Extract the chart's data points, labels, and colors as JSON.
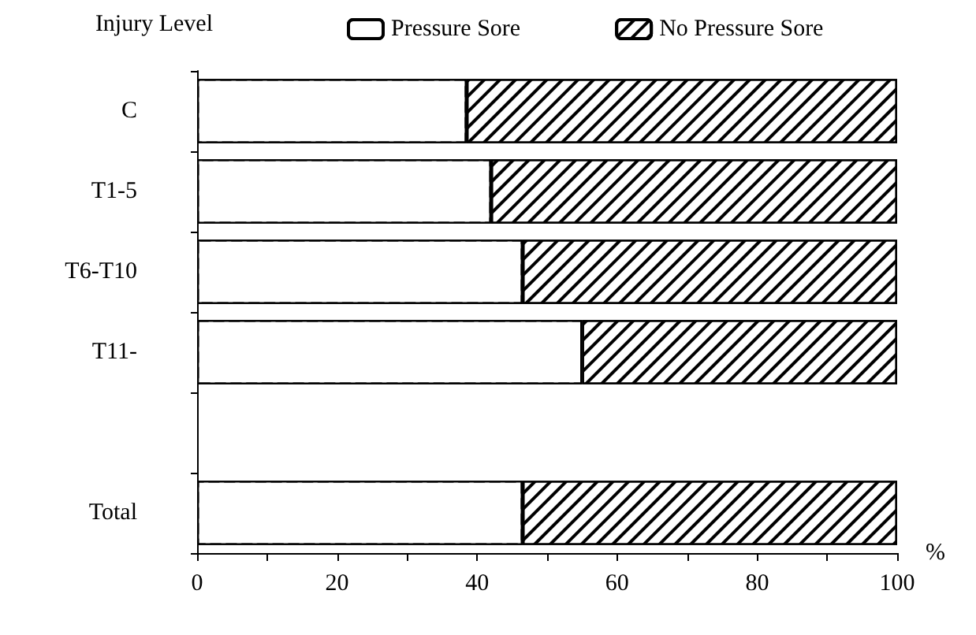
{
  "chart_data": {
    "type": "bar",
    "orientation": "horizontal",
    "stacked": true,
    "ylabel": "Injury Level",
    "xlabel": "%",
    "categories": [
      "C",
      "T1-5",
      "T6-T10",
      "T11-",
      null,
      "Total"
    ],
    "series": [
      {
        "name": "Pressure Sore",
        "color": "#ffffff",
        "values": [
          38.5,
          42,
          46.5,
          55,
          null,
          46.5
        ]
      },
      {
        "name": "No Pressure Sore",
        "color": "#000000",
        "values": [
          61.5,
          58,
          53.5,
          45,
          null,
          53.5
        ]
      }
    ],
    "xlim": [
      0,
      100
    ],
    "xticks": [
      0,
      {
        "value": 10,
        "label": null
      },
      20,
      {
        "value": 30,
        "label": null
      },
      40,
      {
        "value": 50,
        "label": null
      },
      60,
      {
        "value": 70,
        "label": null
      },
      80,
      {
        "value": 90,
        "label": null
      },
      100
    ],
    "grid": false,
    "legend": "top"
  }
}
